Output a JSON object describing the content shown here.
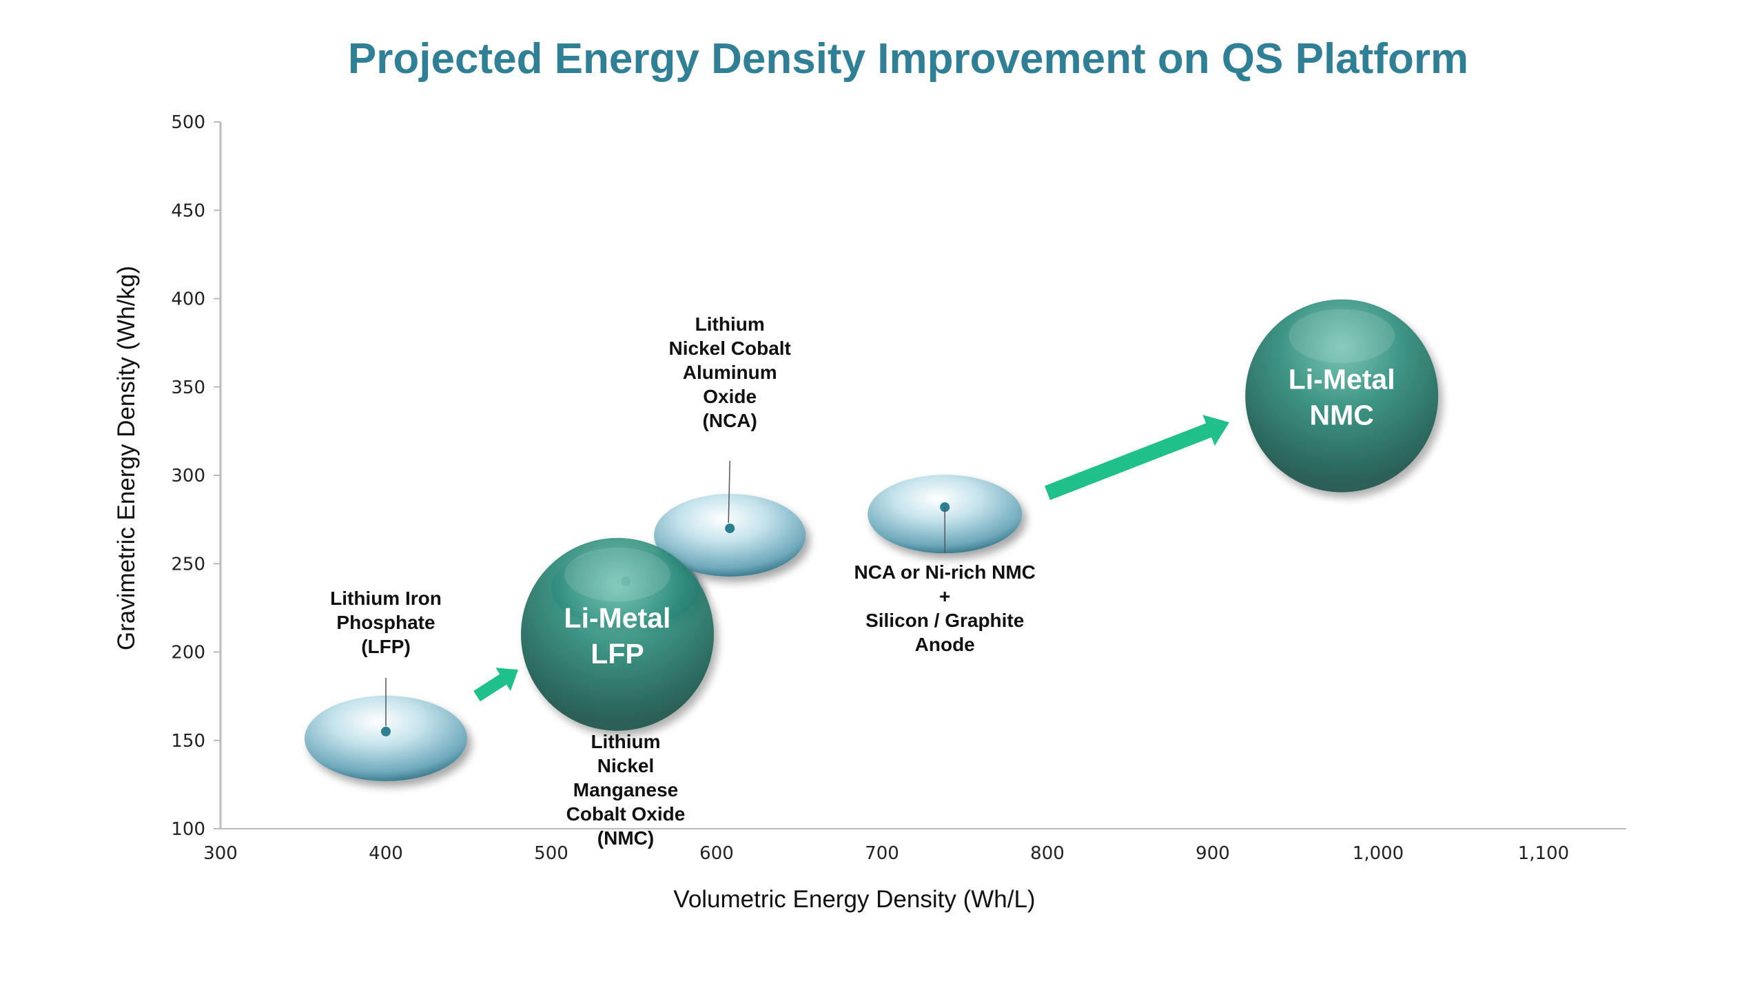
{
  "chart_data": {
    "type": "scatter",
    "title": "Projected Energy Density Improvement on QS Platform",
    "xlabel": "Volumetric Energy Density (Wh/L)",
    "ylabel": "Gravimetric Energy Density (Wh/kg)",
    "xlim": [
      300,
      1150
    ],
    "ylim": [
      100,
      500
    ],
    "xticks": [
      "300",
      "400",
      "500",
      "600",
      "700",
      "800",
      "900",
      "1,000",
      "1,100"
    ],
    "xtick_values": [
      300,
      400,
      500,
      600,
      700,
      800,
      900,
      1000,
      1100
    ],
    "yticks": [
      "100",
      "150",
      "200",
      "250",
      "300",
      "350",
      "400",
      "450",
      "500"
    ],
    "ytick_values": [
      100,
      150,
      200,
      250,
      300,
      350,
      400,
      450,
      500
    ],
    "grid": false,
    "colors": {
      "title": "#2f8096",
      "sphere": "#1f7a6a",
      "ellipse": "#8ec3d3",
      "arrow": "#1fc08a",
      "dot": "#2a7f90"
    },
    "points": [
      {
        "kind": "ellipse",
        "x": 400,
        "y": 155,
        "label": [
          "Lithium Iron",
          "Phosphate",
          "(LFP)"
        ]
      },
      {
        "kind": "ellipse",
        "x": 545,
        "y": 240,
        "label": [
          "Lithium",
          "Nickel",
          "Manganese",
          "Cobalt Oxide",
          "(NMC)"
        ]
      },
      {
        "kind": "ellipse",
        "x": 608,
        "y": 270,
        "label": [
          "Lithium",
          "Nickel Cobalt",
          "Aluminum",
          "Oxide",
          "(NCA)"
        ]
      },
      {
        "kind": "ellipse",
        "x": 738,
        "y": 282,
        "label": [
          "NCA or Ni-rich NMC",
          "+",
          "Silicon / Graphite",
          "Anode"
        ]
      },
      {
        "kind": "sphere",
        "x": 540,
        "y": 210,
        "label": [
          "Li-Metal",
          "LFP"
        ]
      },
      {
        "kind": "sphere",
        "x": 978,
        "y": 345,
        "label": [
          "Li-Metal",
          "NMC"
        ]
      }
    ],
    "arrows": [
      {
        "from": [
          455,
          175
        ],
        "to": [
          480,
          190
        ]
      },
      {
        "from": [
          800,
          290
        ],
        "to": [
          910,
          330
        ]
      }
    ]
  }
}
